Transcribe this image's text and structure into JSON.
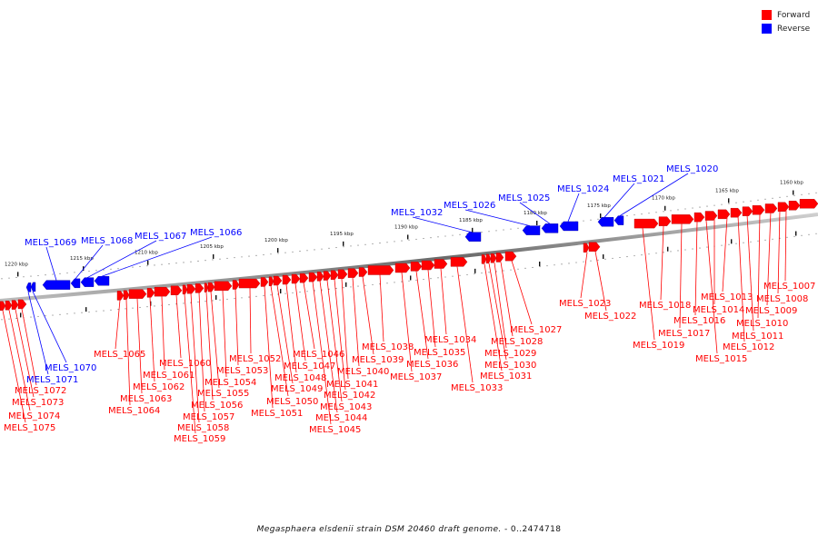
{
  "legend": {
    "forward": {
      "label": "Forward",
      "color": "#ff0000"
    },
    "reverse": {
      "label": "Reverse",
      "color": "#0000ff"
    }
  },
  "caption": {
    "species": "Megasphaera elsdenii strain DSM 20460 draft genome.",
    "range": " - 0..2474718"
  },
  "kbp_ticks": [
    "1160 kbp",
    "1165 kbp",
    "1170 kbp",
    "1175 kbp",
    "1180 kbp",
    "1185 kbp",
    "1190 kbp",
    "1195 kbp",
    "1200 kbp",
    "1205 kbp",
    "1210 kbp",
    "1215 kbp",
    "1220 kbp"
  ],
  "genes": [
    {
      "name": "MELS_1007",
      "strand": "forward"
    },
    {
      "name": "MELS_1008",
      "strand": "forward"
    },
    {
      "name": "MELS_1009",
      "strand": "forward"
    },
    {
      "name": "MELS_1010",
      "strand": "forward"
    },
    {
      "name": "MELS_1011",
      "strand": "forward"
    },
    {
      "name": "MELS_1012",
      "strand": "forward"
    },
    {
      "name": "MELS_1013",
      "strand": "forward"
    },
    {
      "name": "MELS_1014",
      "strand": "forward"
    },
    {
      "name": "MELS_1015",
      "strand": "forward"
    },
    {
      "name": "MELS_1016",
      "strand": "forward"
    },
    {
      "name": "MELS_1017",
      "strand": "forward"
    },
    {
      "name": "MELS_1018",
      "strand": "forward"
    },
    {
      "name": "MELS_1019",
      "strand": "forward"
    },
    {
      "name": "MELS_1020",
      "strand": "reverse"
    },
    {
      "name": "MELS_1021",
      "strand": "reverse"
    },
    {
      "name": "MELS_1022",
      "strand": "forward"
    },
    {
      "name": "MELS_1023",
      "strand": "forward"
    },
    {
      "name": "MELS_1024",
      "strand": "reverse"
    },
    {
      "name": "MELS_1025",
      "strand": "reverse"
    },
    {
      "name": "MELS_1026",
      "strand": "reverse"
    },
    {
      "name": "MELS_1027",
      "strand": "forward"
    },
    {
      "name": "MELS_1028",
      "strand": "forward"
    },
    {
      "name": "MELS_1029",
      "strand": "forward"
    },
    {
      "name": "MELS_1030",
      "strand": "forward"
    },
    {
      "name": "MELS_1031",
      "strand": "forward"
    },
    {
      "name": "MELS_1032",
      "strand": "reverse"
    },
    {
      "name": "MELS_1033",
      "strand": "forward"
    },
    {
      "name": "MELS_1034",
      "strand": "forward"
    },
    {
      "name": "MELS_1035",
      "strand": "forward"
    },
    {
      "name": "MELS_1036",
      "strand": "forward"
    },
    {
      "name": "MELS_1037",
      "strand": "forward"
    },
    {
      "name": "MELS_1038",
      "strand": "forward"
    },
    {
      "name": "MELS_1039",
      "strand": "forward"
    },
    {
      "name": "MELS_1040",
      "strand": "forward"
    },
    {
      "name": "MELS_1041",
      "strand": "forward"
    },
    {
      "name": "MELS_1042",
      "strand": "forward"
    },
    {
      "name": "MELS_1043",
      "strand": "forward"
    },
    {
      "name": "MELS_1044",
      "strand": "forward"
    },
    {
      "name": "MELS_1045",
      "strand": "forward"
    },
    {
      "name": "MELS_1046",
      "strand": "forward"
    },
    {
      "name": "MELS_1047",
      "strand": "forward"
    },
    {
      "name": "MELS_1048",
      "strand": "forward"
    },
    {
      "name": "MELS_1049",
      "strand": "forward"
    },
    {
      "name": "MELS_1050",
      "strand": "forward"
    },
    {
      "name": "MELS_1051",
      "strand": "forward"
    },
    {
      "name": "MELS_1052",
      "strand": "forward"
    },
    {
      "name": "MELS_1053",
      "strand": "forward"
    },
    {
      "name": "MELS_1054",
      "strand": "forward"
    },
    {
      "name": "MELS_1055",
      "strand": "forward"
    },
    {
      "name": "MELS_1056",
      "strand": "forward"
    },
    {
      "name": "MELS_1057",
      "strand": "forward"
    },
    {
      "name": "MELS_1058",
      "strand": "forward"
    },
    {
      "name": "MELS_1059",
      "strand": "forward"
    },
    {
      "name": "MELS_1060",
      "strand": "forward"
    },
    {
      "name": "MELS_1061",
      "strand": "forward"
    },
    {
      "name": "MELS_1062",
      "strand": "forward"
    },
    {
      "name": "MELS_1063",
      "strand": "forward"
    },
    {
      "name": "MELS_1064",
      "strand": "forward"
    },
    {
      "name": "MELS_1065",
      "strand": "forward"
    },
    {
      "name": "MELS_1066",
      "strand": "reverse"
    },
    {
      "name": "MELS_1067",
      "strand": "reverse"
    },
    {
      "name": "MELS_1068",
      "strand": "reverse"
    },
    {
      "name": "MELS_1069",
      "strand": "reverse"
    },
    {
      "name": "MELS_1070",
      "strand": "reverse"
    },
    {
      "name": "MELS_1071",
      "strand": "reverse"
    },
    {
      "name": "MELS_1072",
      "strand": "forward"
    },
    {
      "name": "MELS_1073",
      "strand": "forward"
    },
    {
      "name": "MELS_1074",
      "strand": "forward"
    },
    {
      "name": "MELS_1075",
      "strand": "forward"
    }
  ]
}
